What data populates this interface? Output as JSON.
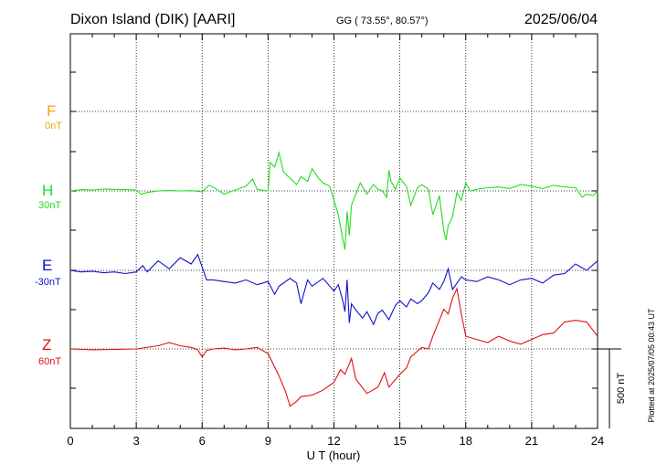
{
  "header": {
    "station": "Dixon Island (DIK)  [AARI]",
    "coords": "GG ( 73.55°,  80.57°)",
    "date": "2025/06/04"
  },
  "footer_note": "Plotted at 2025/07/05 00:43 UT",
  "colors": {
    "F": "#f5a800",
    "H": "#22dd22",
    "E": "#1010cc",
    "Z": "#e01010"
  },
  "chart_data": {
    "type": "line",
    "xlabel": "U T (hour)",
    "xlim": [
      0,
      24
    ],
    "x_ticks": [
      "0",
      "3",
      "6",
      "9",
      "12",
      "15",
      "18",
      "21",
      "24"
    ],
    "scale_bar": "500 nT",
    "components": [
      {
        "name": "F",
        "baseline": "0nT"
      },
      {
        "name": "H",
        "baseline": "30nT"
      },
      {
        "name": "E",
        "baseline": "-30nT"
      },
      {
        "name": "Z",
        "baseline": "60nT"
      }
    ],
    "units": "nT (offset from baseline)",
    "series": [
      {
        "name": "H",
        "x": [
          0,
          0.5,
          1,
          1.5,
          2,
          2.5,
          3,
          3.2,
          3.5,
          4,
          4.5,
          5,
          5.5,
          6,
          6.3,
          6.5,
          7,
          7.5,
          8,
          8.3,
          8.5,
          9,
          9.1,
          9.3,
          9.5,
          9.7,
          10,
          10.3,
          10.5,
          10.8,
          11,
          11.3,
          11.5,
          11.8,
          12,
          12.2,
          12.4,
          12.5,
          12.6,
          12.7,
          12.8,
          13,
          13.2,
          13.5,
          13.8,
          14,
          14.2,
          14.4,
          14.5,
          14.6,
          14.8,
          15,
          15.3,
          15.5,
          15.8,
          16,
          16.3,
          16.5,
          16.8,
          17,
          17.1,
          17.2,
          17.4,
          17.6,
          17.8,
          18,
          18.2,
          18.5,
          19,
          19.5,
          20,
          20.5,
          21,
          21.5,
          22,
          22.5,
          23,
          23.3,
          23.5,
          23.8,
          24
        ],
        "y": [
          0,
          8,
          6,
          12,
          10,
          8,
          6,
          -20,
          -10,
          0,
          3,
          0,
          2,
          -5,
          35,
          25,
          -20,
          5,
          30,
          75,
          10,
          0,
          180,
          150,
          240,
          120,
          80,
          40,
          90,
          60,
          140,
          80,
          50,
          30,
          -60,
          -150,
          -300,
          -370,
          -130,
          -280,
          -90,
          -20,
          50,
          -20,
          40,
          10,
          0,
          -40,
          130,
          60,
          10,
          80,
          30,
          -90,
          20,
          40,
          10,
          -150,
          -30,
          -250,
          -310,
          -220,
          -160,
          -10,
          -60,
          50,
          0,
          10,
          20,
          25,
          15,
          40,
          30,
          15,
          35,
          25,
          20,
          -40,
          -20,
          -30,
          0
        ]
      },
      {
        "name": "E",
        "x": [
          0,
          0.5,
          1,
          1.5,
          2,
          2.5,
          3,
          3.3,
          3.5,
          4,
          4.5,
          5,
          5.5,
          5.8,
          6,
          6.2,
          6.5,
          7,
          7.5,
          8,
          8.5,
          9,
          9.3,
          9.5,
          10,
          10.3,
          10.5,
          10.8,
          11,
          11.5,
          12,
          12.2,
          12.4,
          12.5,
          12.6,
          12.7,
          12.8,
          13,
          13.3,
          13.5,
          13.8,
          14,
          14.2,
          14.5,
          14.8,
          15,
          15.3,
          15.5,
          15.8,
          16,
          16.3,
          16.5,
          16.8,
          17,
          17.2,
          17.4,
          17.6,
          17.8,
          18,
          18.5,
          19,
          19.5,
          20,
          20.5,
          21,
          21.5,
          22,
          22.5,
          23,
          23.5,
          24
        ],
        "y": [
          0,
          -10,
          -5,
          -15,
          -10,
          -20,
          -10,
          30,
          -10,
          60,
          10,
          80,
          40,
          100,
          20,
          -60,
          -60,
          -70,
          -80,
          -60,
          -90,
          -70,
          -150,
          -100,
          -50,
          -80,
          -210,
          -60,
          -100,
          -50,
          -130,
          -90,
          -190,
          -260,
          -60,
          -330,
          -210,
          -250,
          -300,
          -260,
          -340,
          -270,
          -250,
          -310,
          -220,
          -190,
          -230,
          -180,
          -210,
          -190,
          -140,
          -80,
          -120,
          -70,
          10,
          -120,
          -80,
          -40,
          -60,
          -70,
          -40,
          -60,
          -90,
          -60,
          -50,
          -80,
          -30,
          -20,
          40,
          0,
          60
        ]
      },
      {
        "name": "Z",
        "x": [
          0,
          1,
          2,
          3,
          4,
          4.5,
          5,
          5.5,
          5.8,
          6,
          6.2,
          6.5,
          7,
          7.5,
          8,
          8.5,
          9,
          9.5,
          9.8,
          10,
          10.3,
          10.5,
          11,
          11.5,
          12,
          12.3,
          12.5,
          12.8,
          13,
          13.5,
          14,
          14.3,
          14.5,
          15,
          15.3,
          15.5,
          16,
          16.3,
          16.5,
          17,
          17.2,
          17.4,
          17.6,
          17.8,
          18,
          18.5,
          19,
          19.5,
          20,
          20.5,
          21,
          21.5,
          22,
          22.5,
          23,
          23.5,
          24
        ],
        "y": [
          0,
          -5,
          -3,
          0,
          20,
          40,
          20,
          10,
          -5,
          -50,
          -10,
          0,
          5,
          -5,
          0,
          10,
          -30,
          -170,
          -270,
          -360,
          -330,
          -300,
          -290,
          -260,
          -210,
          -130,
          -160,
          -60,
          -190,
          -280,
          -240,
          -150,
          -240,
          -160,
          -120,
          -50,
          10,
          0,
          80,
          250,
          220,
          320,
          380,
          220,
          80,
          60,
          40,
          80,
          50,
          30,
          60,
          90,
          100,
          170,
          180,
          170,
          80
        ]
      }
    ]
  }
}
